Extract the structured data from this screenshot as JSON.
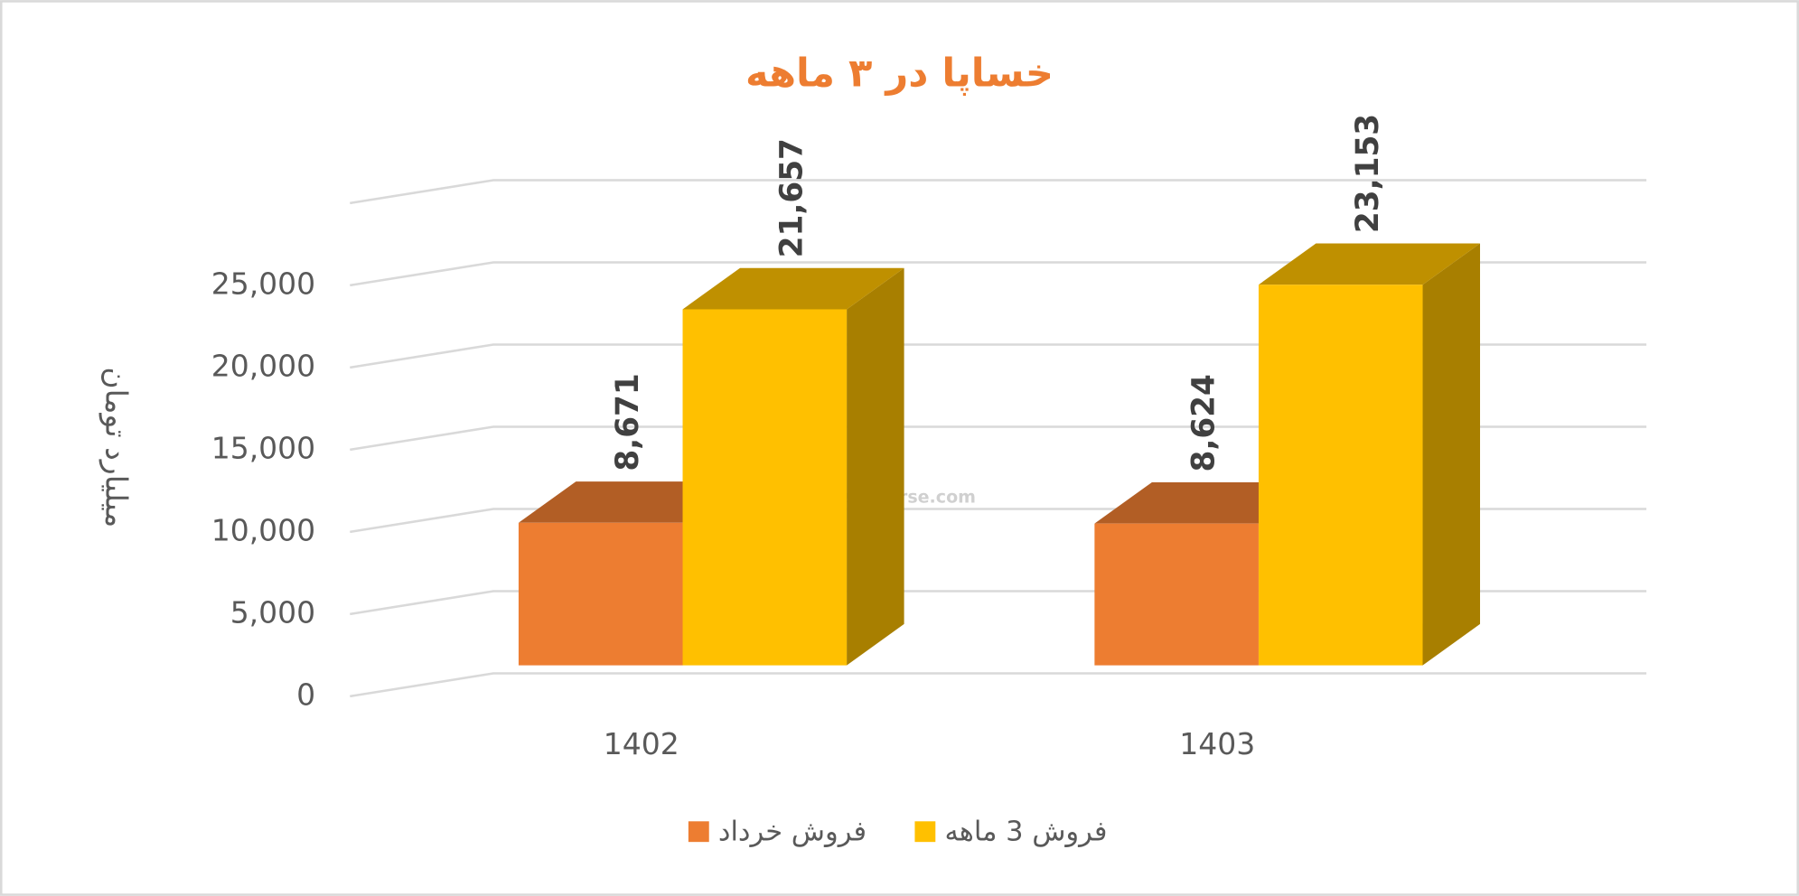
{
  "chart_data": {
    "type": "bar3d",
    "title": "خساپا در ۳ ماهه",
    "y_label": "میلیارد تومان",
    "watermark": "nabzebourse.com",
    "categories": [
      "1402",
      "1403"
    ],
    "series": [
      {
        "name": "فروش خرداد",
        "color": "#ED7D31",
        "values": [
          8671,
          8624
        ],
        "value_labels": [
          "8,671",
          "8,624"
        ]
      },
      {
        "name": "فروش 3 ماهه",
        "color": "#FFC000",
        "values": [
          21657,
          23153
        ],
        "value_labels": [
          "21,657",
          "23,153"
        ]
      }
    ],
    "ylim": [
      0,
      30000
    ],
    "yticks": [
      0,
      {
        "value": 5000,
        "label": "5,000"
      },
      {
        "value": 10000,
        "label": "10,000"
      },
      {
        "value": 15000,
        "label": "15,000"
      },
      {
        "value": 20000,
        "label": "20,000"
      },
      {
        "value": 25000,
        "label": "25,000"
      }
    ],
    "grid": true,
    "legend": "bottom"
  }
}
